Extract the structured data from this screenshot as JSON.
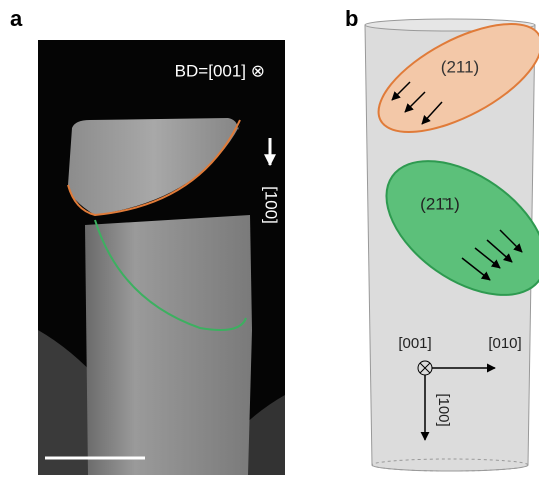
{
  "panels": [
    {
      "label": "a",
      "annotation": "BD=[001] ⊗",
      "arrow_label": "[100]"
    },
    {
      "label": "b",
      "planes": [
        "(211)",
        "(21̄1)"
      ],
      "axes": [
        "[001]",
        "[010]",
        "[100]"
      ]
    }
  ]
}
